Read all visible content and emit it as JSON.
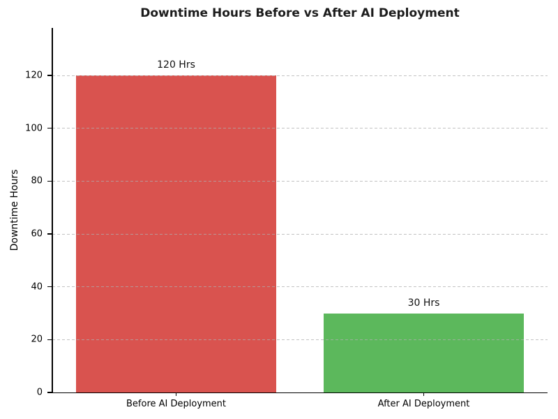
{
  "figure": {
    "background": "#ffffff"
  },
  "chart_data": {
    "type": "bar",
    "title": "Downtime Hours Before vs After AI Deployment",
    "xlabel": "",
    "ylabel": "Downtime Hours",
    "categories": [
      "Before AI Deployment",
      "After AI Deployment"
    ],
    "values": [
      120,
      30
    ],
    "bar_labels": [
      "120 Hrs",
      "30 Hrs"
    ],
    "bar_colors": [
      "#d9534f",
      "#5cb85c"
    ],
    "yticks": [
      0,
      20,
      40,
      60,
      80,
      100,
      120
    ],
    "ylim": [
      0,
      138
    ],
    "grid": {
      "axis": "y",
      "style": "dashed",
      "color": "#cccccc",
      "drawn_above_bars": true
    },
    "legend": "none",
    "title_color": "#1c1c1c",
    "text_color": "#000000",
    "spines": [
      "left",
      "bottom"
    ]
  }
}
